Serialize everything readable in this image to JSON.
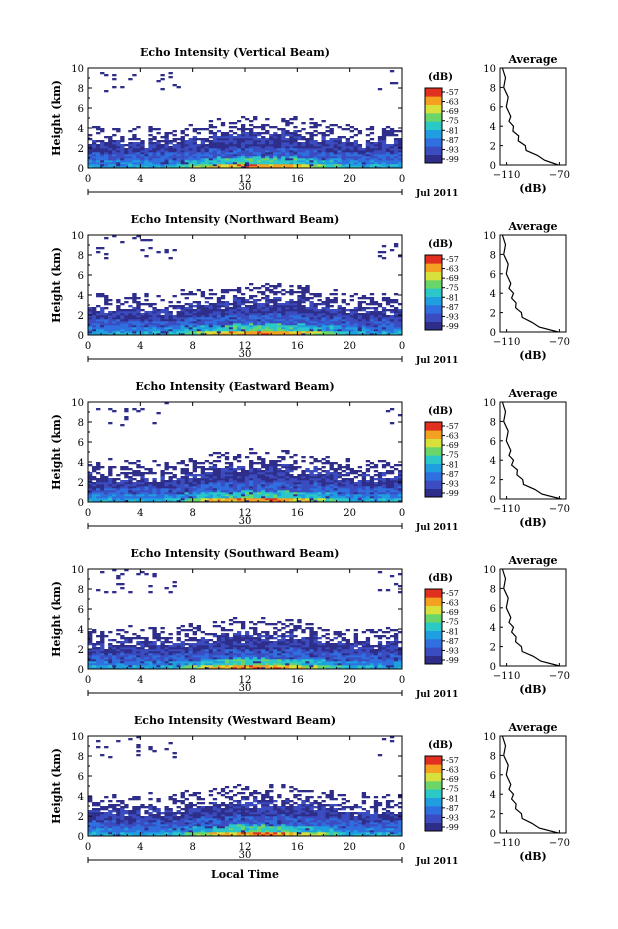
{
  "figure": {
    "date_label": "Jul 2011",
    "date_tick": "30",
    "xlabel_bottom": "Local Time",
    "colorbar_unit": "(dB)",
    "colorbar_ticks": [
      "-57",
      "-63",
      "-69",
      "-75",
      "-81",
      "-87",
      "-93",
      "-99"
    ],
    "colorbar_colors": [
      "#2e2e8a",
      "#3a4cc0",
      "#2f6fe0",
      "#1f9fe0",
      "#2cc8c8",
      "#6ad66a",
      "#d8e03c",
      "#f4a020",
      "#e23020"
    ],
    "average_title": "Average",
    "average_xlabel": "(dB)",
    "main_ylabel": "Height (km)"
  },
  "chart_data": [
    {
      "type": "heatmap",
      "title": "Echo Intensity (Vertical Beam)",
      "ylabel": "Height (km)",
      "x_ticks": [
        "0",
        "4",
        "8",
        "12",
        "16",
        "20",
        "0"
      ],
      "y_ticks": [
        "0",
        "2",
        "4",
        "6",
        "8",
        "10"
      ],
      "xlim": [
        0,
        24
      ],
      "ylim": [
        0,
        10
      ],
      "colorbar_range": [
        -99,
        -57
      ],
      "average_profile": {
        "xlim": [
          -115,
          -65
        ],
        "x_ticks": [
          "-110",
          "-70"
        ],
        "y_ticks": [
          "0",
          "2",
          "4",
          "6",
          "8",
          "10"
        ],
        "height": [
          0,
          0.5,
          1,
          1.5,
          2,
          2.5,
          3,
          3.5,
          4,
          4.5,
          5,
          6,
          7,
          8,
          9,
          10
        ],
        "intensity": [
          -72,
          -80,
          -88,
          -94,
          -97,
          -100,
          -102,
          -104,
          -106,
          -107,
          -108,
          -109,
          -110,
          -111,
          -112,
          -112
        ]
      }
    },
    {
      "type": "heatmap",
      "title": "Echo Intensity (Northward Beam)",
      "ylabel": "Height (km)",
      "x_ticks": [
        "0",
        "4",
        "8",
        "12",
        "16",
        "20",
        "0"
      ],
      "y_ticks": [
        "0",
        "2",
        "4",
        "6",
        "8",
        "10"
      ],
      "xlim": [
        0,
        24
      ],
      "ylim": [
        0,
        10
      ],
      "colorbar_range": [
        -99,
        -57
      ],
      "average_profile": {
        "xlim": [
          -115,
          -65
        ],
        "x_ticks": [
          "-110",
          "-70"
        ],
        "y_ticks": [
          "0",
          "2",
          "4",
          "6",
          "8",
          "10"
        ],
        "height": [
          0,
          0.5,
          1,
          1.5,
          2,
          2.5,
          3,
          3.5,
          4,
          4.5,
          5,
          6,
          7,
          8,
          9,
          10
        ],
        "intensity": [
          -72,
          -84,
          -92,
          -97,
          -100,
          -102,
          -104,
          -105,
          -106,
          -107,
          -108,
          -109,
          -110,
          -111,
          -112,
          -112
        ]
      }
    },
    {
      "type": "heatmap",
      "title": "Echo Intensity (Eastward Beam)",
      "ylabel": "Height (km)",
      "x_ticks": [
        "0",
        "4",
        "8",
        "12",
        "16",
        "20",
        "0"
      ],
      "y_ticks": [
        "0",
        "2",
        "4",
        "6",
        "8",
        "10"
      ],
      "xlim": [
        0,
        24
      ],
      "ylim": [
        0,
        10
      ],
      "colorbar_range": [
        -99,
        -57
      ],
      "average_profile": {
        "xlim": [
          -115,
          -65
        ],
        "x_ticks": [
          "-110",
          "-70"
        ],
        "y_ticks": [
          "0",
          "2",
          "4",
          "6",
          "8",
          "10"
        ],
        "height": [
          0,
          0.5,
          1,
          1.5,
          2,
          2.5,
          3,
          3.5,
          4,
          4.5,
          5,
          6,
          7,
          8,
          9,
          10
        ],
        "intensity": [
          -70,
          -82,
          -90,
          -96,
          -99,
          -101,
          -103,
          -105,
          -106,
          -107,
          -108,
          -109,
          -110,
          -111,
          -112,
          -112
        ]
      }
    },
    {
      "type": "heatmap",
      "title": "Echo Intensity (Southward Beam)",
      "ylabel": "Height (km)",
      "x_ticks": [
        "0",
        "4",
        "8",
        "12",
        "16",
        "20",
        "0"
      ],
      "y_ticks": [
        "0",
        "2",
        "4",
        "6",
        "8",
        "10"
      ],
      "xlim": [
        0,
        24
      ],
      "ylim": [
        0,
        10
      ],
      "colorbar_range": [
        -99,
        -57
      ],
      "average_profile": {
        "xlim": [
          -115,
          -65
        ],
        "x_ticks": [
          "-110",
          "-70"
        ],
        "y_ticks": [
          "0",
          "2",
          "4",
          "6",
          "8",
          "10"
        ],
        "height": [
          0,
          0.5,
          1,
          1.5,
          2,
          2.5,
          3,
          3.5,
          4,
          4.5,
          5,
          6,
          7,
          8,
          9,
          10
        ],
        "intensity": [
          -71,
          -83,
          -91,
          -97,
          -100,
          -102,
          -104,
          -105,
          -106,
          -107,
          -108,
          -109,
          -110,
          -111,
          -112,
          -112
        ]
      }
    },
    {
      "type": "heatmap",
      "title": "Echo Intensity (Westward Beam)",
      "ylabel": "Height (km)",
      "xlabel": "Local Time",
      "x_ticks": [
        "0",
        "4",
        "8",
        "12",
        "16",
        "20",
        "0"
      ],
      "y_ticks": [
        "0",
        "2",
        "4",
        "6",
        "8",
        "10"
      ],
      "xlim": [
        0,
        24
      ],
      "ylim": [
        0,
        10
      ],
      "colorbar_range": [
        -99,
        -57
      ],
      "average_profile": {
        "xlim": [
          -115,
          -65
        ],
        "x_ticks": [
          "-110",
          "-70"
        ],
        "y_ticks": [
          "0",
          "2",
          "4",
          "6",
          "8",
          "10"
        ],
        "height": [
          0,
          0.5,
          1,
          1.5,
          2,
          2.5,
          3,
          3.5,
          4,
          4.5,
          5,
          6,
          7,
          8,
          9,
          10
        ],
        "intensity": [
          -72,
          -84,
          -92,
          -97,
          -100,
          -102,
          -104,
          -105,
          -106,
          -107,
          -108,
          -109,
          -110,
          -111,
          -112,
          -112
        ]
      }
    }
  ]
}
